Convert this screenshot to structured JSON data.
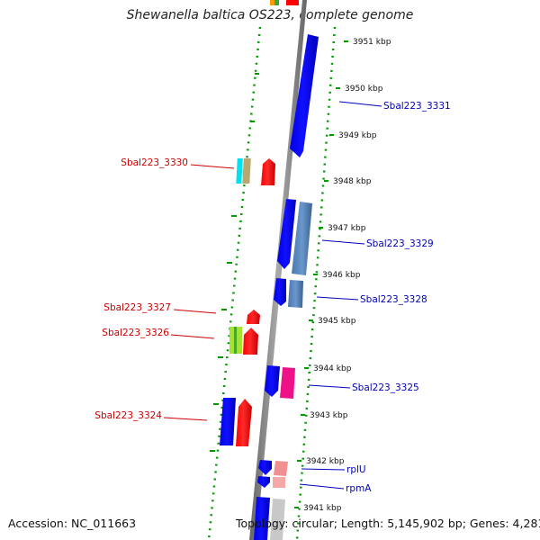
{
  "title": "Shewanella baltica OS223, complete genome",
  "footer": {
    "accession": "Accession: NC_011663",
    "topology": "Topology: circular; Length: 5,145,902 bp; Genes: 4,281"
  },
  "ticks": [
    {
      "label": "3951 kbp",
      "kbp": 3951
    },
    {
      "label": "3950 kbp",
      "kbp": 3950
    },
    {
      "label": "3949 kbp",
      "kbp": 3949
    },
    {
      "label": "3948 kbp",
      "kbp": 3948
    },
    {
      "label": "3947 kbp",
      "kbp": 3947
    },
    {
      "label": "3946 kbp",
      "kbp": 3946
    },
    {
      "label": "3945 kbp",
      "kbp": 3945
    },
    {
      "label": "3944 kbp",
      "kbp": 3944
    },
    {
      "label": "3943 kbp",
      "kbp": 3943
    },
    {
      "label": "3942 kbp",
      "kbp": 3942
    },
    {
      "label": "3941 kbp",
      "kbp": 3941
    }
  ],
  "gene_labels": [
    {
      "label": "Sbal223_3331",
      "side": "right",
      "color": "#0000bb"
    },
    {
      "label": "Sbal223_3330",
      "side": "left",
      "color": "#cc0000"
    },
    {
      "label": "Sbal223_3329",
      "side": "right",
      "color": "#0000bb"
    },
    {
      "label": "Sbal223_3328",
      "side": "right",
      "color": "#0000bb"
    },
    {
      "label": "Sbal223_3327",
      "side": "left",
      "color": "#cc0000"
    },
    {
      "label": "Sbal223_3326",
      "side": "left",
      "color": "#cc0000"
    },
    {
      "label": "Sbal223_3325",
      "side": "right",
      "color": "#0000bb"
    },
    {
      "label": "Sbal223_3324",
      "side": "left",
      "color": "#cc0000"
    },
    {
      "label": "rplU",
      "side": "right",
      "color": "#0000bb"
    },
    {
      "label": "rpmA",
      "side": "right",
      "color": "#0000bb"
    }
  ],
  "colors": {
    "backbone": "#888888",
    "dotted_guide": "#009900",
    "forward_strand": "#ff0000",
    "reverse_strand": "#0000ff",
    "steel_blue": "#4f7fb6",
    "magenta": "#ee1188",
    "cyan": "#00e0ee",
    "tan": "#b8a870",
    "yellow_green": "#a6e22e",
    "pink": "#f09090",
    "light_gray": "#c8c8c8",
    "orange": "#ff9900",
    "green": "#33aa33"
  }
}
